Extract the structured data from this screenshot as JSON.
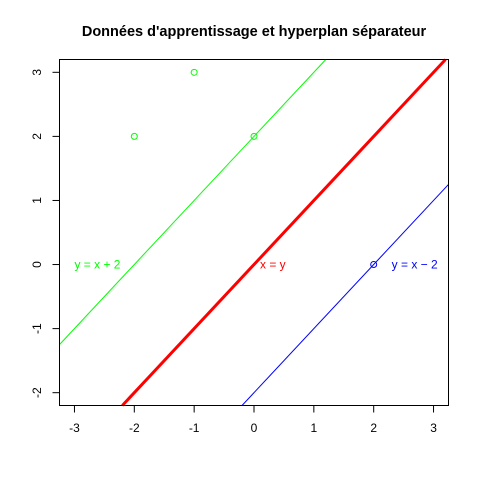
{
  "chart_data": {
    "type": "scatter",
    "title": "Données d'apprentissage et hyperplan séparateur",
    "xlabel": "",
    "ylabel": "",
    "xlim": [
      -3.25,
      3.25
    ],
    "ylim": [
      -2.2,
      3.2
    ],
    "x_ticks": [
      -3,
      -2,
      -1,
      0,
      1,
      2,
      3
    ],
    "y_ticks": [
      -2,
      -1,
      0,
      1,
      2,
      3
    ],
    "x_tick_labels": [
      "-3",
      "-2",
      "-1",
      "0",
      "1",
      "2",
      "3"
    ],
    "y_tick_labels": [
      "-2",
      "-1",
      "0",
      "1",
      "2",
      "3"
    ],
    "grid": false,
    "series": [
      {
        "color": "#00ff00",
        "marker": "open-circle",
        "points": [
          [
            -2,
            2
          ],
          [
            -1,
            3
          ],
          [
            0,
            2
          ]
        ]
      },
      {
        "color": "#0000ff",
        "marker": "open-circle",
        "points": [
          [
            2,
            0
          ]
        ]
      }
    ],
    "lines": [
      {
        "slope": 1,
        "intercept": 2,
        "color": "#00ff00",
        "width": "thin"
      },
      {
        "slope": 1,
        "intercept": 0,
        "color": "#ff0000",
        "width": "thick"
      },
      {
        "slope": 1,
        "intercept": -2,
        "color": "#0000ff",
        "width": "thin"
      }
    ],
    "annotations": [
      {
        "text": "y = x + 2",
        "x": -3,
        "y": 0,
        "color": "#00ff00"
      },
      {
        "text": "x = y",
        "x": 0.1,
        "y": 0,
        "color": "#ff0000"
      },
      {
        "text": "y = x − 2",
        "x": 2.3,
        "y": 0,
        "color": "#0000ff"
      }
    ]
  }
}
